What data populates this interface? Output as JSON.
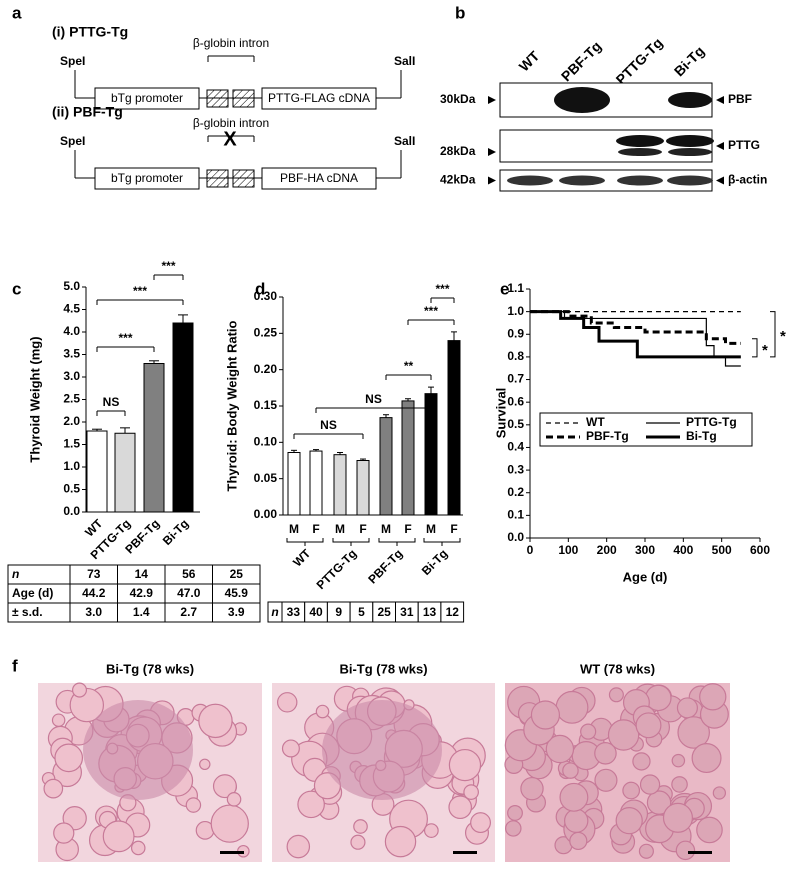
{
  "panel_labels": [
    "a",
    "b",
    "c",
    "d",
    "e",
    "f"
  ],
  "constructs": {
    "cross": "X",
    "items": [
      {
        "title": "(i) PTTG-Tg",
        "left_site": "SpeI",
        "right_site": "SalI",
        "intron": "β-globin intron",
        "promoter": "bTg promoter",
        "cdna": "PTTG-FLAG cDNA"
      },
      {
        "title": "(ii) PBF-Tg",
        "left_site": "SpeI",
        "right_site": "SalI",
        "intron": "β-globin intron",
        "promoter": "bTg promoter",
        "cdna": "PBF-HA cDNA"
      }
    ]
  },
  "western_blot": {
    "lanes": [
      "WT",
      "PBF-Tg",
      "PTTG-Tg",
      "Bi-Tg"
    ],
    "rows": [
      {
        "size": "30kDa",
        "protein": "PBF"
      },
      {
        "size": "28kDa",
        "protein": "PTTG"
      },
      {
        "size": "42kDa",
        "protein": "β-actin"
      }
    ]
  },
  "chart_data": [
    {
      "type": "bar",
      "ylabel": "Thyroid Weight (mg)",
      "categories": [
        "WT",
        "PTTG-Tg",
        "PBF-Tg",
        "Bi-Tg"
      ],
      "values": [
        1.8,
        1.75,
        3.3,
        4.2
      ],
      "errors": [
        0.04,
        0.12,
        0.06,
        0.18
      ],
      "colors": [
        "#ffffff",
        "#d9d9d9",
        "#808080",
        "#000000"
      ],
      "ylim": [
        0,
        5
      ],
      "yticks": [
        {
          "value": 0,
          "label": "0.0"
        },
        0.5,
        {
          "value": 1,
          "label": "1.0"
        },
        1.5,
        {
          "value": 2,
          "label": "2.0"
        },
        2.5,
        {
          "value": 3,
          "label": "3.0"
        },
        3.5,
        {
          "value": 4,
          "label": "4.0"
        },
        4.5,
        {
          "value": 5,
          "label": "5.0"
        }
      ],
      "annotations": [
        "NS",
        "***",
        "***",
        "***"
      ]
    },
    {
      "type": "bar",
      "ylabel": "Thyroid: Body Weight Ratio",
      "categories": [
        "M",
        "F",
        "M",
        "F",
        "M",
        "F",
        "M",
        "F"
      ],
      "groups": [
        "WT",
        "PTTG-Tg",
        "PBF-Tg",
        "Bi-Tg"
      ],
      "values": [
        0.086,
        0.088,
        0.083,
        0.075,
        0.134,
        0.157,
        0.167,
        0.24
      ],
      "errors": [
        0.003,
        0.002,
        0.003,
        0.002,
        0.004,
        0.003,
        0.009,
        0.012
      ],
      "colors": [
        "#ffffff",
        "#ffffff",
        "#d9d9d9",
        "#d9d9d9",
        "#808080",
        "#808080",
        "#000000",
        "#000000"
      ],
      "ylim": [
        0,
        0.3
      ],
      "yticks": [
        {
          "value": 0,
          "label": "0.00"
        },
        0.05,
        {
          "value": 0.1,
          "label": "0.10"
        },
        0.15,
        {
          "value": 0.2,
          "label": "0.20"
        },
        0.25,
        {
          "value": 0.3,
          "label": "0.30"
        }
      ],
      "annotations": [
        "NS",
        "NS",
        "**",
        "***",
        "***"
      ]
    },
    {
      "type": "line",
      "xlabel": "Age (d)",
      "ylabel": "Survival",
      "xlim": [
        0,
        600
      ],
      "xticks": [
        0,
        100,
        200,
        300,
        400,
        500,
        600
      ],
      "ylim": [
        0,
        1.1
      ],
      "yticks": [
        {
          "value": 0,
          "label": "0.0"
        },
        0.1,
        0.2,
        0.3,
        0.4,
        0.5,
        0.6,
        0.7,
        0.8,
        0.9,
        {
          "value": 1,
          "label": "1.0"
        },
        1.1
      ],
      "series": [
        {
          "name": "WT",
          "color": "#000000",
          "style": "dashed",
          "thick": false,
          "x": [
            0,
            550
          ],
          "values": [
            1,
            1
          ]
        },
        {
          "name": "PTTG-Tg",
          "color": "#000000",
          "style": "solid",
          "thick": false,
          "x": [
            0,
            90,
            90,
            460,
            460,
            480,
            480,
            510,
            510,
            550
          ],
          "values": [
            1,
            1,
            0.97,
            0.97,
            0.85,
            0.85,
            0.8,
            0.8,
            0.76,
            0.76
          ]
        },
        {
          "name": "PBF-Tg",
          "color": "#000000",
          "style": "dashed",
          "thick": true,
          "x": [
            0,
            100,
            100,
            160,
            160,
            220,
            220,
            300,
            300,
            460,
            460,
            510,
            510,
            550
          ],
          "values": [
            1,
            1,
            0.98,
            0.98,
            0.95,
            0.95,
            0.93,
            0.93,
            0.91,
            0.91,
            0.88,
            0.88,
            0.86,
            0.86
          ]
        },
        {
          "name": "Bi-Tg",
          "color": "#000000",
          "style": "solid",
          "thick": true,
          "x": [
            0,
            80,
            80,
            140,
            140,
            180,
            180,
            280,
            280,
            550
          ],
          "values": [
            1,
            1,
            0.97,
            0.97,
            0.93,
            0.93,
            0.87,
            0.87,
            0.8,
            0.8
          ]
        }
      ],
      "annotations": [
        "*",
        "*"
      ]
    }
  ],
  "tables": {
    "weight": [
      [
        "n",
        "73",
        "14",
        "56",
        "25"
      ],
      [
        "Age (d)",
        "44.2",
        "42.9",
        "47.0",
        "45.9"
      ],
      [
        "± s.d.",
        "3.0",
        "1.4",
        "2.7",
        "3.9"
      ]
    ],
    "ratio": [
      "n",
      "33",
      "40",
      "9",
      "5",
      "25",
      "31",
      "13",
      "12"
    ]
  },
  "histology": {
    "labels": [
      "Bi-Tg (78 wks)",
      "Bi-Tg (78 wks)",
      "WT (78 wks)"
    ]
  }
}
